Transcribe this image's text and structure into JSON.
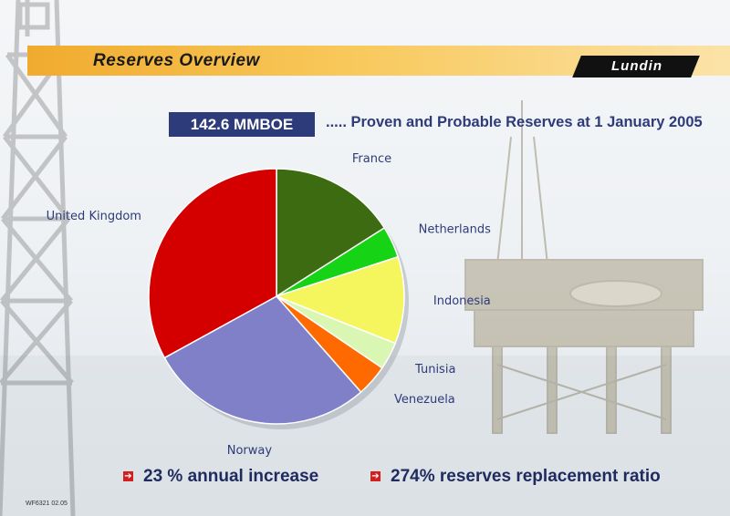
{
  "header": {
    "title": "Reserves Overview",
    "logo_text": "Lundin"
  },
  "summary": {
    "badge": "142.6 MMBOE",
    "subtitle": "..... Proven and Probable Reserves at 1 January 2005"
  },
  "bullets": [
    {
      "icon": "red-arrow-icon",
      "text": "23 % annual increase"
    },
    {
      "icon": "red-arrow-icon",
      "text": "274% reserves replacement ratio"
    }
  ],
  "footer": {
    "code": "WF6321 02.05"
  },
  "colors": {
    "accent_bar": "#f0ab2e",
    "badge_bg": "#2e3b7a",
    "text_blue": "#2e3b7a"
  },
  "chart_data": {
    "type": "pie",
    "unit": "%",
    "slices": [
      {
        "label": "France",
        "value": 16,
        "color": "#3d6b12"
      },
      {
        "label": "Netherlands",
        "value": 4,
        "color": "#16d316"
      },
      {
        "label": "Indonesia",
        "value": 11,
        "color": "#f5f55e"
      },
      {
        "label": "Tunisia",
        "value": 3.5,
        "color": "#d9f7b3"
      },
      {
        "label": "Venezuela",
        "value": 4,
        "color": "#ff6a00"
      },
      {
        "label": "Norway",
        "value": 28.5,
        "color": "#8080c8"
      },
      {
        "label": "United Kingdom",
        "value": 33,
        "color": "#d40000"
      }
    ]
  }
}
